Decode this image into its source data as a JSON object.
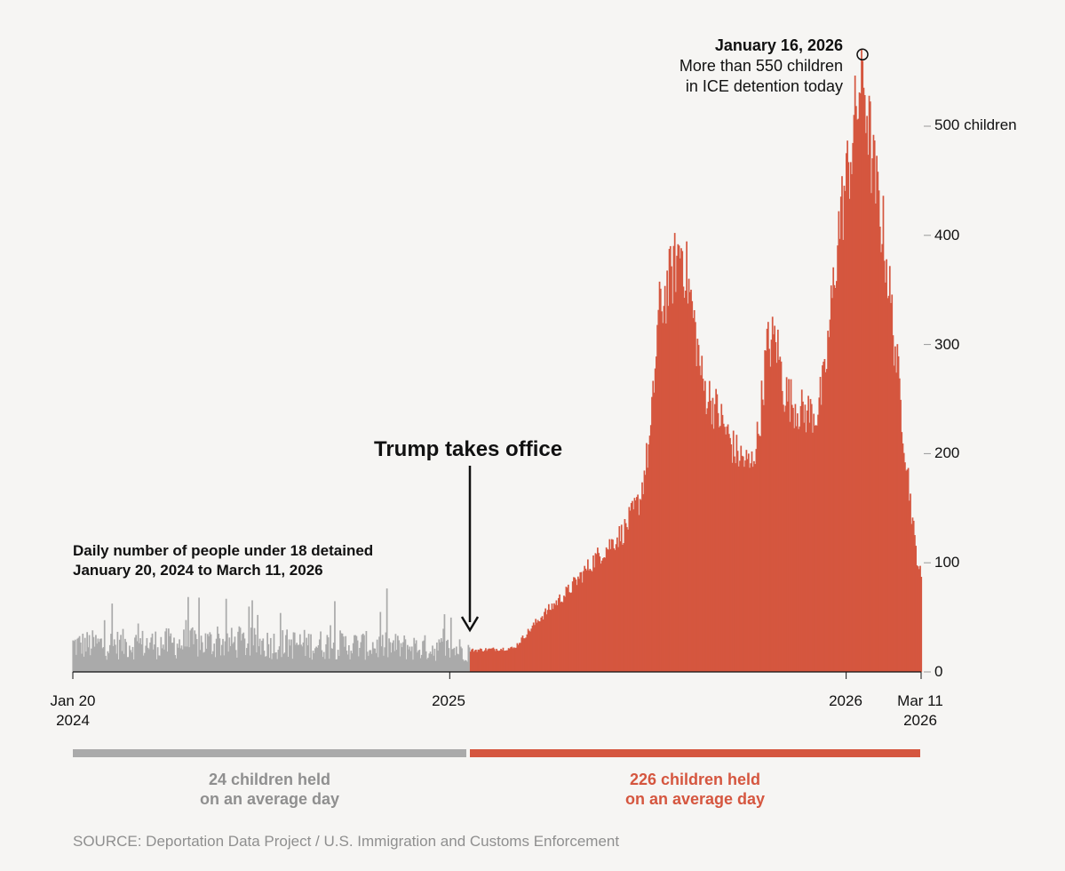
{
  "subtitle": {
    "line1": "Daily number of people under 18 detained",
    "line2": "January 20, 2024 to March 11, 2026"
  },
  "annotations": {
    "peak_date": "January 16, 2026",
    "peak_desc_line1": "More than 550 children",
    "peak_desc_line2": "in ICE detention today",
    "inauguration": "Trump takes office"
  },
  "averages": {
    "before_line1": "24 children held",
    "before_line2": "on an average day",
    "after_line1": "226 children held",
    "after_line2": "on an average day"
  },
  "source": "SOURCE: Deportation Data Project / U.S. Immigration and Customs Enforcement",
  "colors": {
    "before": "#aaaaaa",
    "after": "#d5563f",
    "background": "#f6f5f3"
  },
  "chart_data": {
    "type": "bar",
    "title": "",
    "x_range": [
      "2024-01-20",
      "2026-03-11"
    ],
    "ylim": [
      0,
      570
    ],
    "y_ticks": [
      {
        "value": 0,
        "label": "0"
      },
      {
        "value": 100,
        "label": "100"
      },
      {
        "value": 200,
        "label": "200"
      },
      {
        "value": 300,
        "label": "300"
      },
      {
        "value": 400,
        "label": "400"
      },
      {
        "value": 500,
        "label": "500 children"
      }
    ],
    "x_ticks": [
      {
        "date": "2024-01-20",
        "line1": "Jan 20",
        "line2": "2024"
      },
      {
        "date": "2025-01-01",
        "line1": "2025",
        "line2": ""
      },
      {
        "date": "2026-01-01",
        "line1": "2026",
        "line2": ""
      },
      {
        "date": "2026-03-11",
        "line1": "Mar 11",
        "line2": "2026"
      }
    ],
    "split_date": "2025-01-20",
    "peak": {
      "date": "2026-01-16",
      "value": 560
    },
    "trend": [
      {
        "date": "2024-01-20",
        "value": 24
      },
      {
        "date": "2024-06-01",
        "value": 26
      },
      {
        "date": "2024-10-01",
        "value": 24
      },
      {
        "date": "2025-01-20",
        "value": 20
      },
      {
        "date": "2025-03-01",
        "value": 22
      },
      {
        "date": "2025-03-25",
        "value": 50
      },
      {
        "date": "2025-04-20",
        "value": 75
      },
      {
        "date": "2025-05-15",
        "value": 105
      },
      {
        "date": "2025-06-10",
        "value": 130
      },
      {
        "date": "2025-06-25",
        "value": 160
      },
      {
        "date": "2025-07-05",
        "value": 220
      },
      {
        "date": "2025-07-12",
        "value": 330
      },
      {
        "date": "2025-07-25",
        "value": 370
      },
      {
        "date": "2025-08-02",
        "value": 395
      },
      {
        "date": "2025-08-10",
        "value": 350
      },
      {
        "date": "2025-08-22",
        "value": 265
      },
      {
        "date": "2025-09-05",
        "value": 240
      },
      {
        "date": "2025-09-20",
        "value": 205
      },
      {
        "date": "2025-10-05",
        "value": 190
      },
      {
        "date": "2025-10-12",
        "value": 220
      },
      {
        "date": "2025-10-20",
        "value": 300
      },
      {
        "date": "2025-10-28",
        "value": 310
      },
      {
        "date": "2025-11-05",
        "value": 260
      },
      {
        "date": "2025-11-12",
        "value": 250
      },
      {
        "date": "2025-11-22",
        "value": 240
      },
      {
        "date": "2025-12-05",
        "value": 240
      },
      {
        "date": "2025-12-12",
        "value": 270
      },
      {
        "date": "2025-12-25",
        "value": 410
      },
      {
        "date": "2026-01-05",
        "value": 480
      },
      {
        "date": "2026-01-16",
        "value": 560
      },
      {
        "date": "2026-01-25",
        "value": 470
      },
      {
        "date": "2026-02-05",
        "value": 400
      },
      {
        "date": "2026-02-15",
        "value": 300
      },
      {
        "date": "2026-02-25",
        "value": 200
      },
      {
        "date": "2026-03-05",
        "value": 120
      },
      {
        "date": "2026-03-11",
        "value": 85
      }
    ]
  }
}
